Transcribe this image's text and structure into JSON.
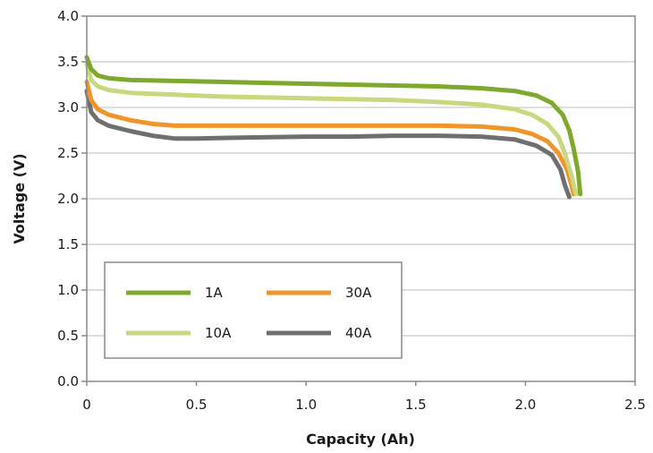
{
  "chart_data": {
    "type": "line",
    "xlabel": "Capacity (Ah)",
    "ylabel": "Voltage (V)",
    "xlim": [
      0,
      2.5
    ],
    "ylim": [
      0,
      4.0
    ],
    "xticks": [
      "0",
      "0.5",
      "1.0",
      "1.5",
      "2.0",
      "2.5"
    ],
    "yticks": [
      "0.0",
      "0.5",
      "1.0",
      "1.5",
      "2.0",
      "2.5",
      "3.0",
      "3.5",
      "4.0"
    ],
    "grid": "horizontal",
    "legend_placement": "lower-left",
    "series": [
      {
        "name": "1A",
        "color": "#7fa82e",
        "x": [
          0,
          0.02,
          0.05,
          0.1,
          0.2,
          0.4,
          0.6,
          0.8,
          1.0,
          1.2,
          1.4,
          1.6,
          1.8,
          1.95,
          2.05,
          2.12,
          2.17,
          2.2,
          2.22,
          2.24,
          2.25
        ],
        "y": [
          3.55,
          3.42,
          3.35,
          3.32,
          3.3,
          3.29,
          3.28,
          3.27,
          3.26,
          3.25,
          3.24,
          3.23,
          3.21,
          3.18,
          3.13,
          3.05,
          2.92,
          2.75,
          2.55,
          2.3,
          2.05
        ]
      },
      {
        "name": "10A",
        "color": "#c9d87f",
        "x": [
          0,
          0.02,
          0.05,
          0.1,
          0.2,
          0.4,
          0.6,
          0.8,
          1.0,
          1.2,
          1.4,
          1.6,
          1.8,
          1.95,
          2.03,
          2.1,
          2.15,
          2.18,
          2.21,
          2.23
        ],
        "y": [
          3.48,
          3.3,
          3.23,
          3.19,
          3.16,
          3.14,
          3.12,
          3.11,
          3.1,
          3.09,
          3.08,
          3.06,
          3.03,
          2.98,
          2.92,
          2.82,
          2.68,
          2.5,
          2.25,
          2.05
        ]
      },
      {
        "name": "30A",
        "color": "#f0952a",
        "x": [
          0,
          0.02,
          0.05,
          0.1,
          0.2,
          0.3,
          0.4,
          0.6,
          0.8,
          1.0,
          1.2,
          1.4,
          1.6,
          1.8,
          1.95,
          2.03,
          2.1,
          2.15,
          2.19,
          2.21,
          2.22
        ],
        "y": [
          3.28,
          3.08,
          2.98,
          2.92,
          2.86,
          2.82,
          2.8,
          2.8,
          2.8,
          2.8,
          2.8,
          2.8,
          2.8,
          2.79,
          2.76,
          2.71,
          2.63,
          2.5,
          2.32,
          2.15,
          2.05
        ]
      },
      {
        "name": "40A",
        "color": "#6f6f6f",
        "x": [
          0,
          0.02,
          0.05,
          0.1,
          0.2,
          0.3,
          0.4,
          0.5,
          0.7,
          1.0,
          1.2,
          1.4,
          1.6,
          1.8,
          1.95,
          2.05,
          2.12,
          2.16,
          2.18,
          2.2
        ],
        "y": [
          3.18,
          2.95,
          2.86,
          2.8,
          2.74,
          2.69,
          2.66,
          2.66,
          2.67,
          2.68,
          2.68,
          2.69,
          2.69,
          2.68,
          2.65,
          2.58,
          2.48,
          2.32,
          2.15,
          2.02
        ]
      }
    ]
  }
}
